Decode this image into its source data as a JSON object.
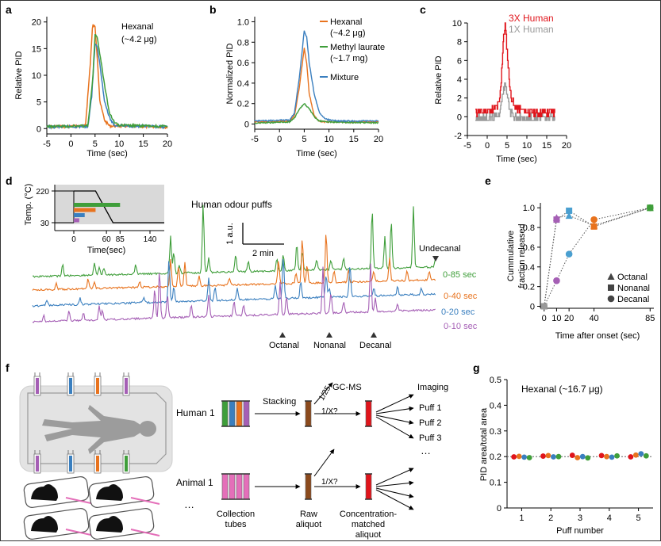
{
  "panel_labels": {
    "a": "a",
    "b": "b",
    "c": "c",
    "d": "d",
    "e": "e",
    "f": "f",
    "g": "g"
  },
  "colors": {
    "orange": "#e8731e",
    "green": "#3f9e3a",
    "blue": "#3a7fbf",
    "purple": "#a55fb5",
    "red": "#e0141b",
    "gray": "#999999",
    "brown": "#8b4a1c",
    "pink": "#e46fb9",
    "cyan": "#4a9fd0"
  },
  "chart_data": [
    {
      "id": "a",
      "type": "line",
      "xlabel": "Time (sec)",
      "ylabel": "Relative PID",
      "xlim": [
        -5,
        20
      ],
      "ylim": [
        -1,
        21
      ],
      "xticks": [
        "-5",
        "0",
        "5",
        "10",
        "15",
        "20"
      ],
      "yticks": [
        "0",
        "5",
        "10",
        "15",
        "20"
      ],
      "annotation": "Hexanal\n(~4.2 μg)",
      "series": [
        {
          "color": "#e8731e",
          "x": [
            -5,
            3,
            4,
            4.5,
            5,
            5.5,
            6,
            7,
            8,
            20
          ],
          "y": [
            0.3,
            0.5,
            12,
            19.5,
            19,
            13,
            5,
            1.5,
            0.5,
            0.3
          ]
        },
        {
          "color": "#3a7fbf",
          "x": [
            -5,
            3.5,
            4.3,
            5,
            5.5,
            6,
            7,
            8,
            9,
            20
          ],
          "y": [
            0.3,
            0.4,
            6,
            16,
            15,
            12,
            5,
            2,
            0.6,
            0.3
          ]
        },
        {
          "color": "#3f9e3a",
          "x": [
            -5,
            3.5,
            4.5,
            5,
            5.5,
            6,
            7,
            8,
            9,
            10,
            20
          ],
          "y": [
            0.4,
            0.5,
            9,
            17.5,
            17,
            14,
            8,
            3,
            1.2,
            0.6,
            0.4
          ]
        }
      ]
    },
    {
      "id": "b",
      "type": "line",
      "xlabel": "Time (sec)",
      "ylabel": "Normalized PID",
      "xlim": [
        -5,
        20
      ],
      "ylim": [
        -0.05,
        1.05
      ],
      "xticks": [
        "-5",
        "0",
        "5",
        "10",
        "15",
        "20"
      ],
      "yticks": [
        "0",
        "0.2",
        "0.4",
        "0.6",
        "0.8",
        "1.0"
      ],
      "series": [
        {
          "name": "Hexanal\n(~4.2 μg)",
          "color": "#e8731e",
          "x": [
            -5,
            2,
            3,
            4,
            5,
            5.5,
            6,
            7,
            8,
            9,
            10,
            20
          ],
          "y": [
            0.02,
            0.03,
            0.08,
            0.35,
            0.74,
            0.6,
            0.3,
            0.08,
            0.03,
            0.02,
            0.02,
            0.02
          ]
        },
        {
          "name": "Methyl laurate\n(~1.7 mg)",
          "color": "#3f9e3a",
          "x": [
            -5,
            2,
            3,
            4,
            5,
            6,
            7,
            8,
            10,
            20
          ],
          "y": [
            0.01,
            0.02,
            0.06,
            0.14,
            0.2,
            0.15,
            0.07,
            0.03,
            0.02,
            0.01
          ]
        },
        {
          "name": "Mixture",
          "color": "#3a7fbf",
          "x": [
            -5,
            2,
            3,
            4,
            5,
            5.5,
            6,
            7,
            8,
            9,
            10,
            12,
            20
          ],
          "y": [
            0.03,
            0.04,
            0.1,
            0.45,
            0.91,
            0.85,
            0.6,
            0.3,
            0.12,
            0.06,
            0.04,
            0.03,
            0.03
          ]
        }
      ]
    },
    {
      "id": "c",
      "type": "line",
      "xlabel": "Time (sec)",
      "ylabel": "Relative PID",
      "xlim": [
        -5,
        20
      ],
      "ylim": [
        -2,
        10
      ],
      "xticks": [
        "-5",
        "0",
        "5",
        "10",
        "15",
        "20"
      ],
      "yticks": [
        "-2",
        "0",
        "2",
        "4",
        "6",
        "8",
        "10"
      ],
      "series": [
        {
          "name": "3X Human",
          "color": "#e0141b",
          "x": [
            -3,
            0,
            2,
            3,
            3.5,
            4,
            4.5,
            5,
            5.5,
            6,
            7,
            8,
            9,
            10,
            12,
            15,
            17
          ],
          "y": [
            0.5,
            0.6,
            0.8,
            1.5,
            4,
            8,
            9.7,
            7,
            4,
            2,
            1,
            0.8,
            0.6,
            0.5,
            0.5,
            0.4,
            0.5
          ]
        },
        {
          "name": "1X Human",
          "color": "#999999",
          "x": [
            -3,
            0,
            2,
            3,
            4,
            4.5,
            5,
            5.5,
            6,
            7,
            9,
            12,
            17
          ],
          "y": [
            -0.2,
            -0.1,
            0,
            0.3,
            2.8,
            3.4,
            2.5,
            1,
            0.3,
            0,
            -0.2,
            -0.1,
            -0.1
          ]
        }
      ]
    },
    {
      "id": "d",
      "type": "line",
      "title": "Human odour puffs",
      "scalebar_y": "1 a.u.",
      "scalebar_x": "2 min",
      "series": [
        {
          "name": "0-85 sec",
          "color": "#3f9e3a"
        },
        {
          "name": "0-40 sec",
          "color": "#e8731e"
        },
        {
          "name": "0-20 sec",
          "color": "#3a7fbf"
        },
        {
          "name": "0-10 sec",
          "color": "#a55fb5"
        }
      ],
      "markers": [
        "Octanal",
        "Nonanal",
        "Decanal",
        "Undecanal"
      ],
      "inset": {
        "ylabel": "Temp. (°C)",
        "xlabel": "Time(sec)",
        "yticks": [
          "30",
          "220"
        ],
        "xticks": [
          "0",
          "60",
          "85",
          "140"
        ],
        "temp_profile": {
          "t": [
            0,
            40,
            72,
            120,
            140
          ],
          "T": [
            220,
            220,
            30,
            30,
            30
          ]
        },
        "bars": [
          {
            "color": "#3f9e3a",
            "end": 85
          },
          {
            "color": "#e8731e",
            "end": 40
          },
          {
            "color": "#3a7fbf",
            "end": 20
          },
          {
            "color": "#a55fb5",
            "end": 10
          }
        ]
      }
    },
    {
      "id": "e",
      "type": "scatter",
      "xlabel": "Time after onset (sec)",
      "ylabel": "Cummulative\nfraction released",
      "xlim": [
        -3,
        88
      ],
      "ylim": [
        -0.02,
        1.05
      ],
      "xticks": [
        "0",
        "10",
        "20",
        "40",
        "85"
      ],
      "yticks": [
        "0",
        "0.2",
        "0.4",
        "0.6",
        "0.8",
        "1.0"
      ],
      "x": [
        0,
        10,
        20,
        40,
        85
      ],
      "series": [
        {
          "name": "Octanal",
          "marker": "triangle",
          "values": [
            0,
            0.9,
            0.92,
            0.82,
            1.0
          ]
        },
        {
          "name": "Nonanal",
          "marker": "square",
          "values": [
            0,
            0.88,
            0.97,
            0.81,
            1.0
          ]
        },
        {
          "name": "Decanal",
          "marker": "circle",
          "values": [
            0,
            0.26,
            0.53,
            0.88,
            1.0
          ]
        }
      ],
      "point_colors": [
        "#999999",
        "#a55fb5",
        "#4a9fd0",
        "#e8731e",
        "#3f9e3a"
      ]
    },
    {
      "id": "g",
      "type": "scatter",
      "title": "Hexanal (~16.7 μg)",
      "xlabel": "Puff number",
      "ylabel": "PID area/total area",
      "xlim": [
        0.5,
        5.5
      ],
      "ylim": [
        0,
        0.5
      ],
      "xticks": [
        "1",
        "2",
        "3",
        "4",
        "5"
      ],
      "yticks": [
        "0",
        "0.1",
        "0.2",
        "0.3",
        "0.4",
        "0.5"
      ],
      "reference_line": 0.2,
      "point_colors": [
        "#e0141b",
        "#e8731e",
        "#3a7fbf",
        "#3f9e3a"
      ],
      "points": [
        {
          "puff": 1,
          "values": [
            0.199,
            0.201,
            0.198,
            0.196
          ]
        },
        {
          "puff": 2,
          "values": [
            0.202,
            0.204,
            0.199,
            0.2
          ]
        },
        {
          "puff": 3,
          "values": [
            0.205,
            0.196,
            0.2,
            0.195
          ]
        },
        {
          "puff": 4,
          "values": [
            0.204,
            0.2,
            0.198,
            0.203
          ]
        },
        {
          "puff": 5,
          "values": [
            0.199,
            0.206,
            0.211,
            0.203
          ]
        }
      ]
    }
  ],
  "schematic": {
    "human_label": "Human 1",
    "animal_label": "Animal 1",
    "ellipsis_left": "…",
    "stacking": "Stacking",
    "gcms": "GC-MS",
    "ratio_gcms": "1/25",
    "ratio_1": "1/X?",
    "ratio_2": "1/X?",
    "imaging": "Imaging",
    "puffs": [
      "Puff 1",
      "Puff 2",
      "Puff 3"
    ],
    "puff_ellipsis": "…",
    "captions": {
      "collection": "Collection\ntubes",
      "raw": "Raw\naliquot",
      "matched": "Concentration-\nmatched\naliquot"
    }
  }
}
